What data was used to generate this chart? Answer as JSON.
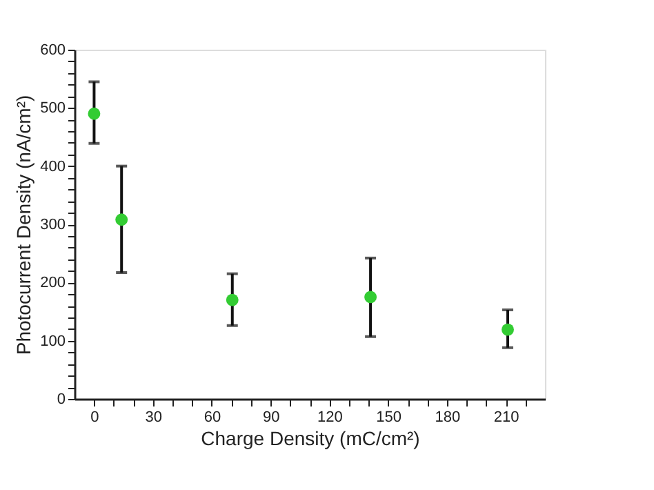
{
  "chart_data": {
    "type": "scatter",
    "xlabel": "Charge Density (mC/cm²)",
    "ylabel": "Photocurrent Density (nA/cm²)",
    "x": [
      0,
      14,
      70.5,
      141,
      211
    ],
    "series": [
      {
        "color": "#33cc33",
        "values": [
          490,
          308,
          170,
          175,
          119
        ],
        "errors": [
          [
            439,
            545
          ],
          [
            217,
            400
          ],
          [
            126,
            215
          ],
          [
            107,
            242
          ],
          [
            88,
            153
          ]
        ]
      }
    ],
    "xlim": [
      -10,
      230
    ],
    "xticks": [
      0,
      {
        "value": 10,
        "label": null
      },
      {
        "value": 20,
        "label": null
      },
      30,
      {
        "value": 40,
        "label": null
      },
      {
        "value": 50,
        "label": null
      },
      60,
      {
        "value": 70,
        "label": null
      },
      {
        "value": 80,
        "label": null
      },
      90,
      {
        "value": 100,
        "label": null
      },
      {
        "value": 110,
        "label": null
      },
      120,
      {
        "value": 130,
        "label": null
      },
      {
        "value": 140,
        "label": null
      },
      150,
      {
        "value": 160,
        "label": null
      },
      {
        "value": 170,
        "label": null
      },
      180,
      {
        "value": 190,
        "label": null
      },
      {
        "value": 200,
        "label": null
      },
      210,
      {
        "value": 220,
        "label": null
      }
    ],
    "ylim": [
      0,
      600
    ],
    "yticks": [
      0,
      {
        "value": 20,
        "label": null
      },
      {
        "value": 40,
        "label": null
      },
      {
        "value": 60,
        "label": null
      },
      {
        "value": 80,
        "label": null
      },
      100,
      {
        "value": 120,
        "label": null
      },
      {
        "value": 140,
        "label": null
      },
      {
        "value": 160,
        "label": null
      },
      {
        "value": 180,
        "label": null
      },
      200,
      {
        "value": 220,
        "label": null
      },
      {
        "value": 240,
        "label": null
      },
      {
        "value": 260,
        "label": null
      },
      {
        "value": 280,
        "label": null
      },
      300,
      {
        "value": 320,
        "label": null
      },
      {
        "value": 340,
        "label": null
      },
      {
        "value": 360,
        "label": null
      },
      {
        "value": 380,
        "label": null
      },
      400,
      {
        "value": 420,
        "label": null
      },
      {
        "value": 440,
        "label": null
      },
      {
        "value": 460,
        "label": null
      },
      {
        "value": 480,
        "label": null
      },
      500,
      {
        "value": 520,
        "label": null
      },
      {
        "value": 540,
        "label": null
      },
      {
        "value": 560,
        "label": null
      },
      {
        "value": 580,
        "label": null
      },
      600
    ],
    "grid": false,
    "marker": "circle"
  }
}
